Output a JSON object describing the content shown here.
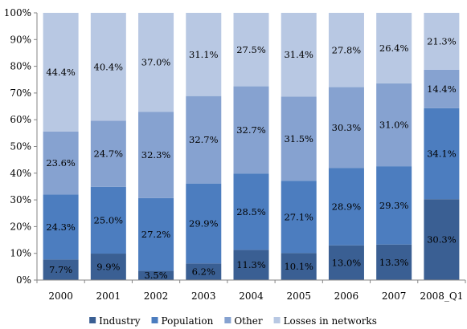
{
  "chart_data": {
    "type": "bar",
    "stacked": true,
    "normalized": true,
    "categories": [
      "2000",
      "2001",
      "2002",
      "2003",
      "2004",
      "2005",
      "2006",
      "2007",
      "2008_Q1"
    ],
    "series": [
      {
        "name": "Industry",
        "color": "#3a5f93",
        "values": [
          7.7,
          9.9,
          3.5,
          6.2,
          11.3,
          10.1,
          13.0,
          13.3,
          30.3
        ],
        "labels": [
          "7.7%",
          "9.9%",
          "3.5%",
          "6.2%",
          "11.3%",
          "10.1%",
          "13.0%",
          "13.3%",
          "30.3%"
        ]
      },
      {
        "name": "Population",
        "color": "#4c7dbf",
        "values": [
          24.3,
          25.0,
          27.2,
          29.9,
          28.5,
          27.1,
          28.9,
          29.3,
          34.1
        ],
        "labels": [
          "24.3%",
          "25.0%",
          "27.2%",
          "29.9%",
          "28.5%",
          "27.1%",
          "28.9%",
          "29.3%",
          "34.1%"
        ]
      },
      {
        "name": "Other",
        "color": "#86a2d0",
        "values": [
          23.6,
          24.7,
          32.3,
          32.7,
          32.7,
          31.5,
          30.3,
          31.0,
          14.4
        ],
        "labels": [
          "23.6%",
          "24.7%",
          "32.3%",
          "32.7%",
          "32.7%",
          "31.5%",
          "30.3%",
          "31.0%",
          "14.4%"
        ]
      },
      {
        "name": "Losses in networks",
        "color": "#b8c8e3",
        "values": [
          44.4,
          40.4,
          37.0,
          31.1,
          27.5,
          31.4,
          27.8,
          26.4,
          21.3
        ],
        "labels": [
          "44.4%",
          "40.4%",
          "37.0%",
          "31.1%",
          "27.5%",
          "31.4%",
          "27.8%",
          "26.4%",
          "21.3%"
        ]
      }
    ],
    "yticks": [
      "0%",
      "10%",
      "20%",
      "30%",
      "40%",
      "50%",
      "60%",
      "70%",
      "80%",
      "90%",
      "100%"
    ],
    "ylim": [
      0,
      100
    ],
    "grid": false,
    "legend": "bottom"
  }
}
